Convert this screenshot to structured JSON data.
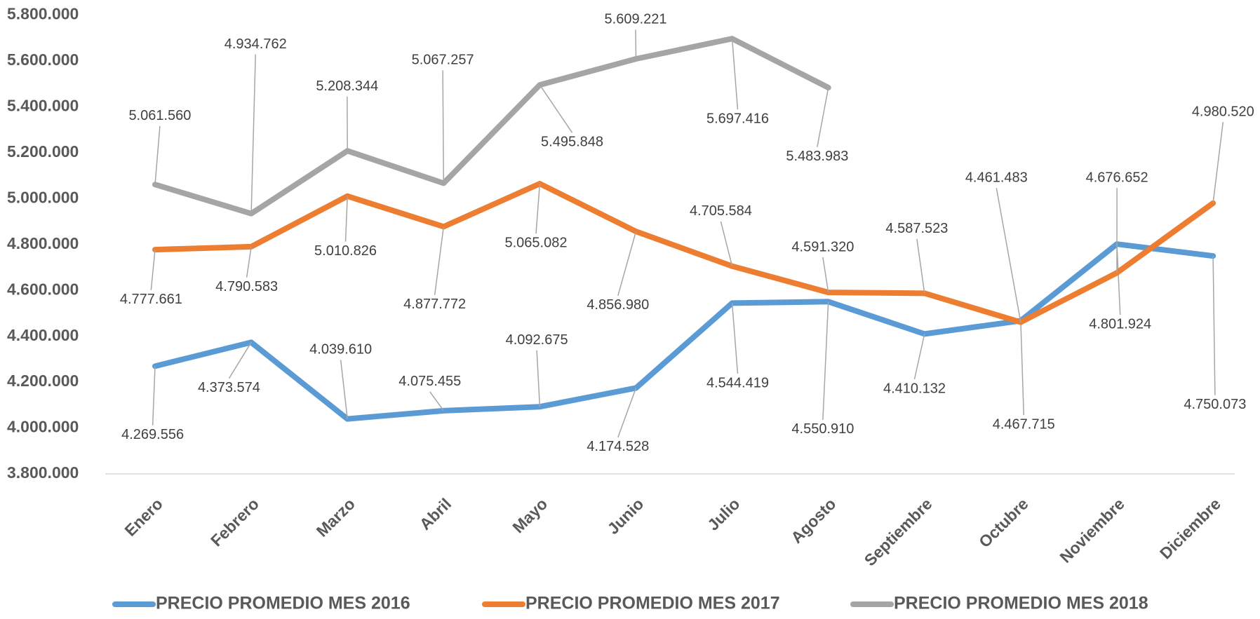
{
  "chart_data": {
    "type": "line",
    "categories": [
      "Enero",
      "Febrero",
      "Marzo",
      "Abril",
      "Mayo",
      "Junio",
      "Julio",
      "Agosto",
      "Septiembre",
      "Octubre",
      "Noviembre",
      "Diciembre"
    ],
    "series": [
      {
        "name": "PRECIO PROMEDIO MES 2016",
        "color": "#5b9bd5",
        "values": [
          4269556,
          4373574,
          4039610,
          4075455,
          4092675,
          4174528,
          4544419,
          4550910,
          4410132,
          4467715,
          4801924,
          4750073
        ],
        "value_labels": [
          "4.269.556",
          "4.373.574",
          "4.039.610",
          "4.075.455",
          "4.092.675",
          "4.174.528",
          "4.544.419",
          "4.550.910",
          "4.410.132",
          "4.467.715",
          "4.801.924",
          "4.750.073"
        ]
      },
      {
        "name": "PRECIO PROMEDIO MES 2017",
        "color": "#ed7d31",
        "values": [
          4777661,
          4790583,
          5010826,
          4877772,
          5065082,
          4856980,
          4705584,
          4591320,
          4587523,
          4461483,
          4676652,
          4980520
        ],
        "value_labels": [
          "4.777.661",
          "4.790.583",
          "5.010.826",
          "4.877.772",
          "5.065.082",
          "4.856.980",
          "4.705.584",
          "4.591.320",
          "4.587.523",
          "4.461.483",
          "4.676.652",
          "4.980.520"
        ]
      },
      {
        "name": "PRECIO PROMEDIO MES 2018",
        "color": "#a5a5a5",
        "values": [
          5061560,
          4934762,
          5208344,
          5067257,
          5495848,
          5609221,
          5697416,
          5483983,
          null,
          null,
          null,
          null
        ],
        "value_labels": [
          "5.061.560",
          "4.934.762",
          "5.208.344",
          "5.067.257",
          "5.495.848",
          "5.609.221",
          "5.697.416",
          "5.483.983",
          null,
          null,
          null,
          null
        ]
      }
    ],
    "ylim": [
      3800000,
      5800000
    ],
    "yticks": [
      {
        "value": 3800000,
        "label": "3.800.000"
      },
      {
        "value": 4000000,
        "label": "4.000.000"
      },
      {
        "value": 4200000,
        "label": "4.200.000"
      },
      {
        "value": 4400000,
        "label": "4.400.000"
      },
      {
        "value": 4600000,
        "label": "4.600.000"
      },
      {
        "value": 4800000,
        "label": "4.800.000"
      },
      {
        "value": 5000000,
        "label": "5.000.000"
      },
      {
        "value": 5200000,
        "label": "5.200.000"
      },
      {
        "value": 5400000,
        "label": "5.400.000"
      },
      {
        "value": 5600000,
        "label": "5.600.000"
      },
      {
        "value": 5800000,
        "label": "5.800.000"
      }
    ],
    "grid": false,
    "legend": "bottom"
  }
}
